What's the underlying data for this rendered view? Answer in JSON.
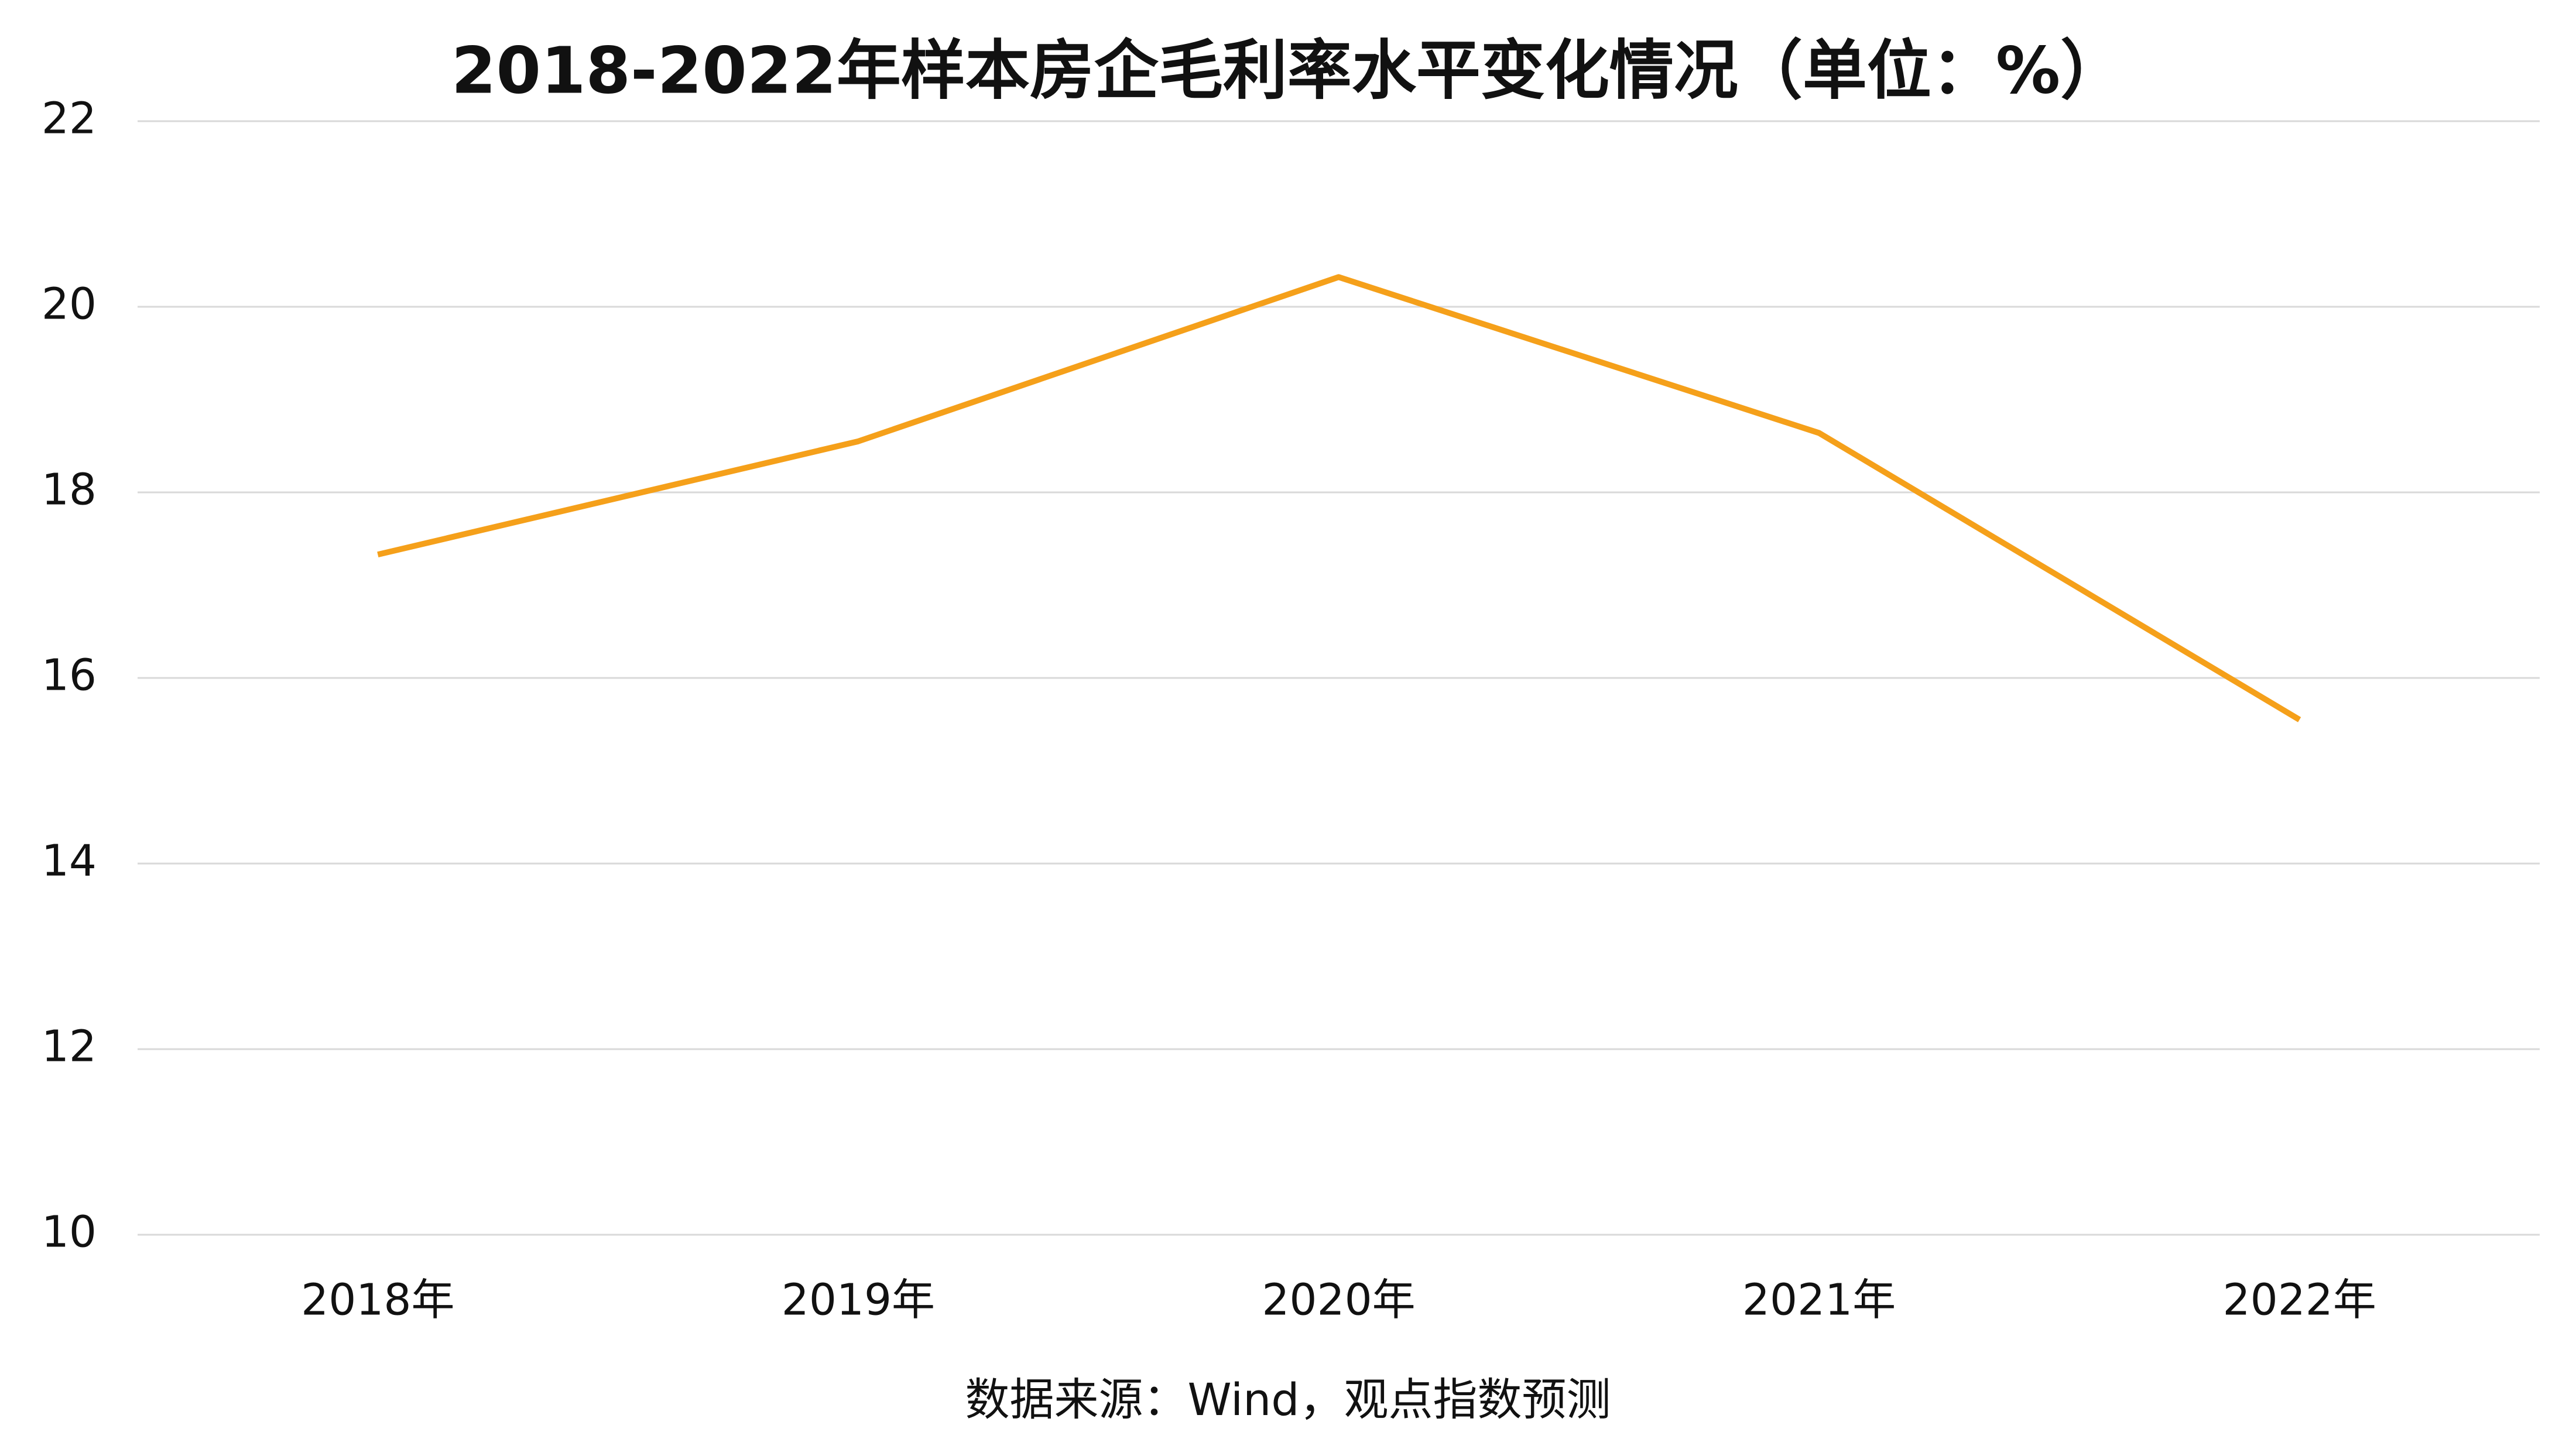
{
  "chart_data": {
    "type": "line",
    "title": "2018-2022年样本房企毛利率水平变化情况（单位：%）",
    "source": "数据来源：Wind，观点指数预测",
    "categories": [
      "2018年",
      "2019年",
      "2020年",
      "2021年",
      "2022年"
    ],
    "series": [
      {
        "name": "毛利率",
        "color": "#f5a01a",
        "values": [
          17.33,
          18.55,
          20.32,
          18.64,
          15.55
        ]
      }
    ],
    "ylim": [
      10,
      22
    ],
    "yticks": [
      10,
      12,
      14,
      16,
      18,
      20,
      22
    ],
    "grid": true,
    "legend": false
  }
}
